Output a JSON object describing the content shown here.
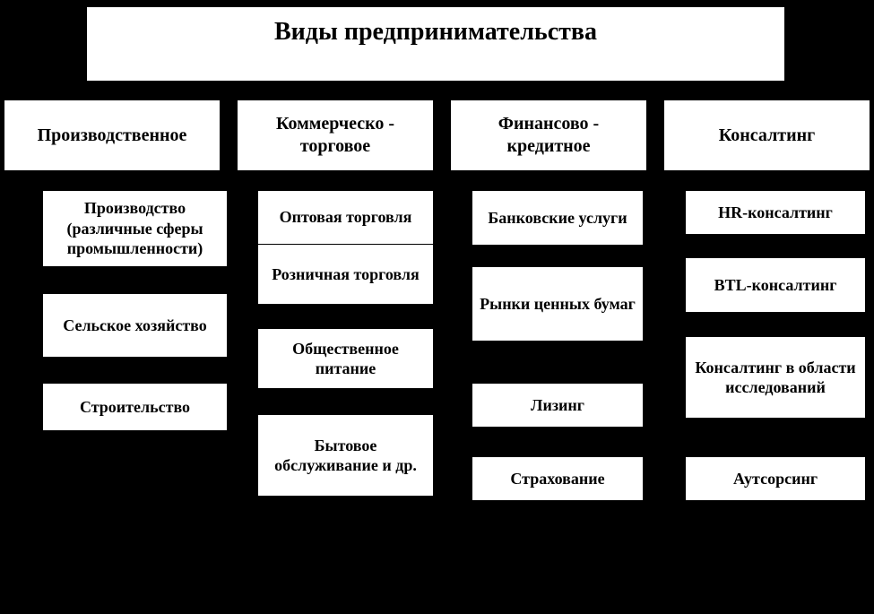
{
  "type": "tree",
  "background_color": "#000000",
  "box_background": "#ffffff",
  "text_color": "#000000",
  "font_family": "Times New Roman",
  "title": {
    "text": "Виды предпринимательства",
    "fontsize": 28,
    "fontweight": "bold"
  },
  "categories": [
    {
      "id": "cat1",
      "label": "Производственное"
    },
    {
      "id": "cat2",
      "label": "Коммерческо - торговое"
    },
    {
      "id": "cat3",
      "label": "Финансово - кредитное"
    },
    {
      "id": "cat4",
      "label": "Консалтинг"
    }
  ],
  "leaves": {
    "cat1": [
      "Производство (различные сферы промышленности)",
      "Сельское хозяйство",
      "Строительство"
    ],
    "cat2": [
      "Оптовая торговля",
      "Розничная торговля",
      "Общественное питание",
      "Бытовое обслуживание и др."
    ],
    "cat3": [
      "Банковские услуги",
      "Рынки ценных бумаг",
      "Лизинг",
      "Страхование"
    ],
    "cat4": [
      "HR-консалтинг",
      "BTL-консалтинг",
      "Консалтинг в области исследований",
      "Аутсорсинг"
    ]
  },
  "category_fontsize": 20,
  "leaf_fontsize": 18,
  "leaf_fontweight": "bold"
}
